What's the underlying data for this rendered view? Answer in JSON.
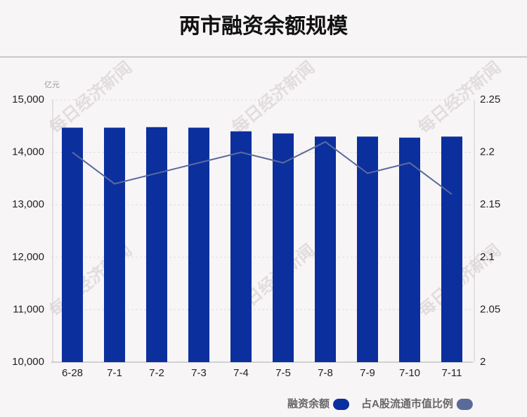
{
  "chart_data": {
    "type": "bar_line",
    "title": "两市融资余额规模",
    "unit": "亿元",
    "watermark": "每日经济新闻",
    "categories": [
      "6-28",
      "7-1",
      "7-2",
      "7-3",
      "7-4",
      "7-5",
      "7-8",
      "7-9",
      "7-10",
      "7-11"
    ],
    "series": [
      {
        "name": "融资余额",
        "type": "bar",
        "color": "#0c2f9e",
        "values": [
          14470,
          14470,
          14480,
          14470,
          14400,
          14360,
          14300,
          14300,
          14280,
          14300
        ]
      },
      {
        "name": "占A股流通市值比例",
        "type": "line",
        "axis": "y2",
        "color": "#5a6b9b",
        "values": [
          2.2,
          2.17,
          2.18,
          2.19,
          2.2,
          2.19,
          2.21,
          2.18,
          2.19,
          2.16
        ]
      }
    ],
    "ylim": [
      10000,
      15000
    ],
    "yticks": [
      {
        "value": 10000,
        "label": "10,000"
      },
      {
        "value": 11000,
        "label": "11,000"
      },
      {
        "value": 12000,
        "label": "12,000"
      },
      {
        "value": 13000,
        "label": "13,000"
      },
      {
        "value": 14000,
        "label": "14,000"
      },
      {
        "value": 15000,
        "label": "15,000"
      }
    ],
    "y2lim": [
      2,
      2.25
    ],
    "y2ticks": [
      2,
      2.05,
      2.1,
      2.15,
      2.2,
      2.25
    ],
    "grid": true
  }
}
